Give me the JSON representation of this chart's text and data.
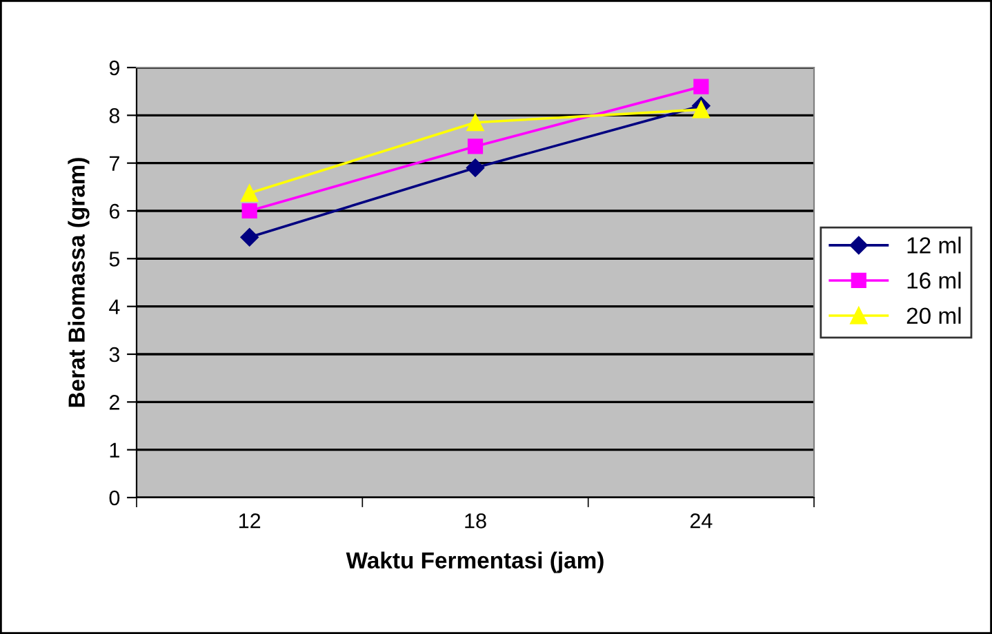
{
  "chart_data": {
    "type": "line",
    "xlabel": "Waktu Fermentasi (jam)",
    "ylabel": "Berat Biomassa (gram)",
    "categories": [
      "12",
      "18",
      "24"
    ],
    "series": [
      {
        "name": "12 ml",
        "color": "#000080",
        "values": [
          5.45,
          6.9,
          8.2
        ],
        "marker": "diamond"
      },
      {
        "name": "16 ml",
        "color": "#ff00ff",
        "values": [
          6.0,
          7.35,
          8.6
        ],
        "marker": "square"
      },
      {
        "name": "20 ml",
        "color": "#ffff00",
        "values": [
          6.37,
          7.85,
          8.12
        ],
        "marker": "triangle"
      }
    ],
    "ylim": [
      0,
      9
    ],
    "yticks": [
      0,
      1,
      2,
      3,
      4,
      5,
      6,
      7,
      8,
      9
    ],
    "grid": "y",
    "legend": "right",
    "line_style": "solid"
  }
}
